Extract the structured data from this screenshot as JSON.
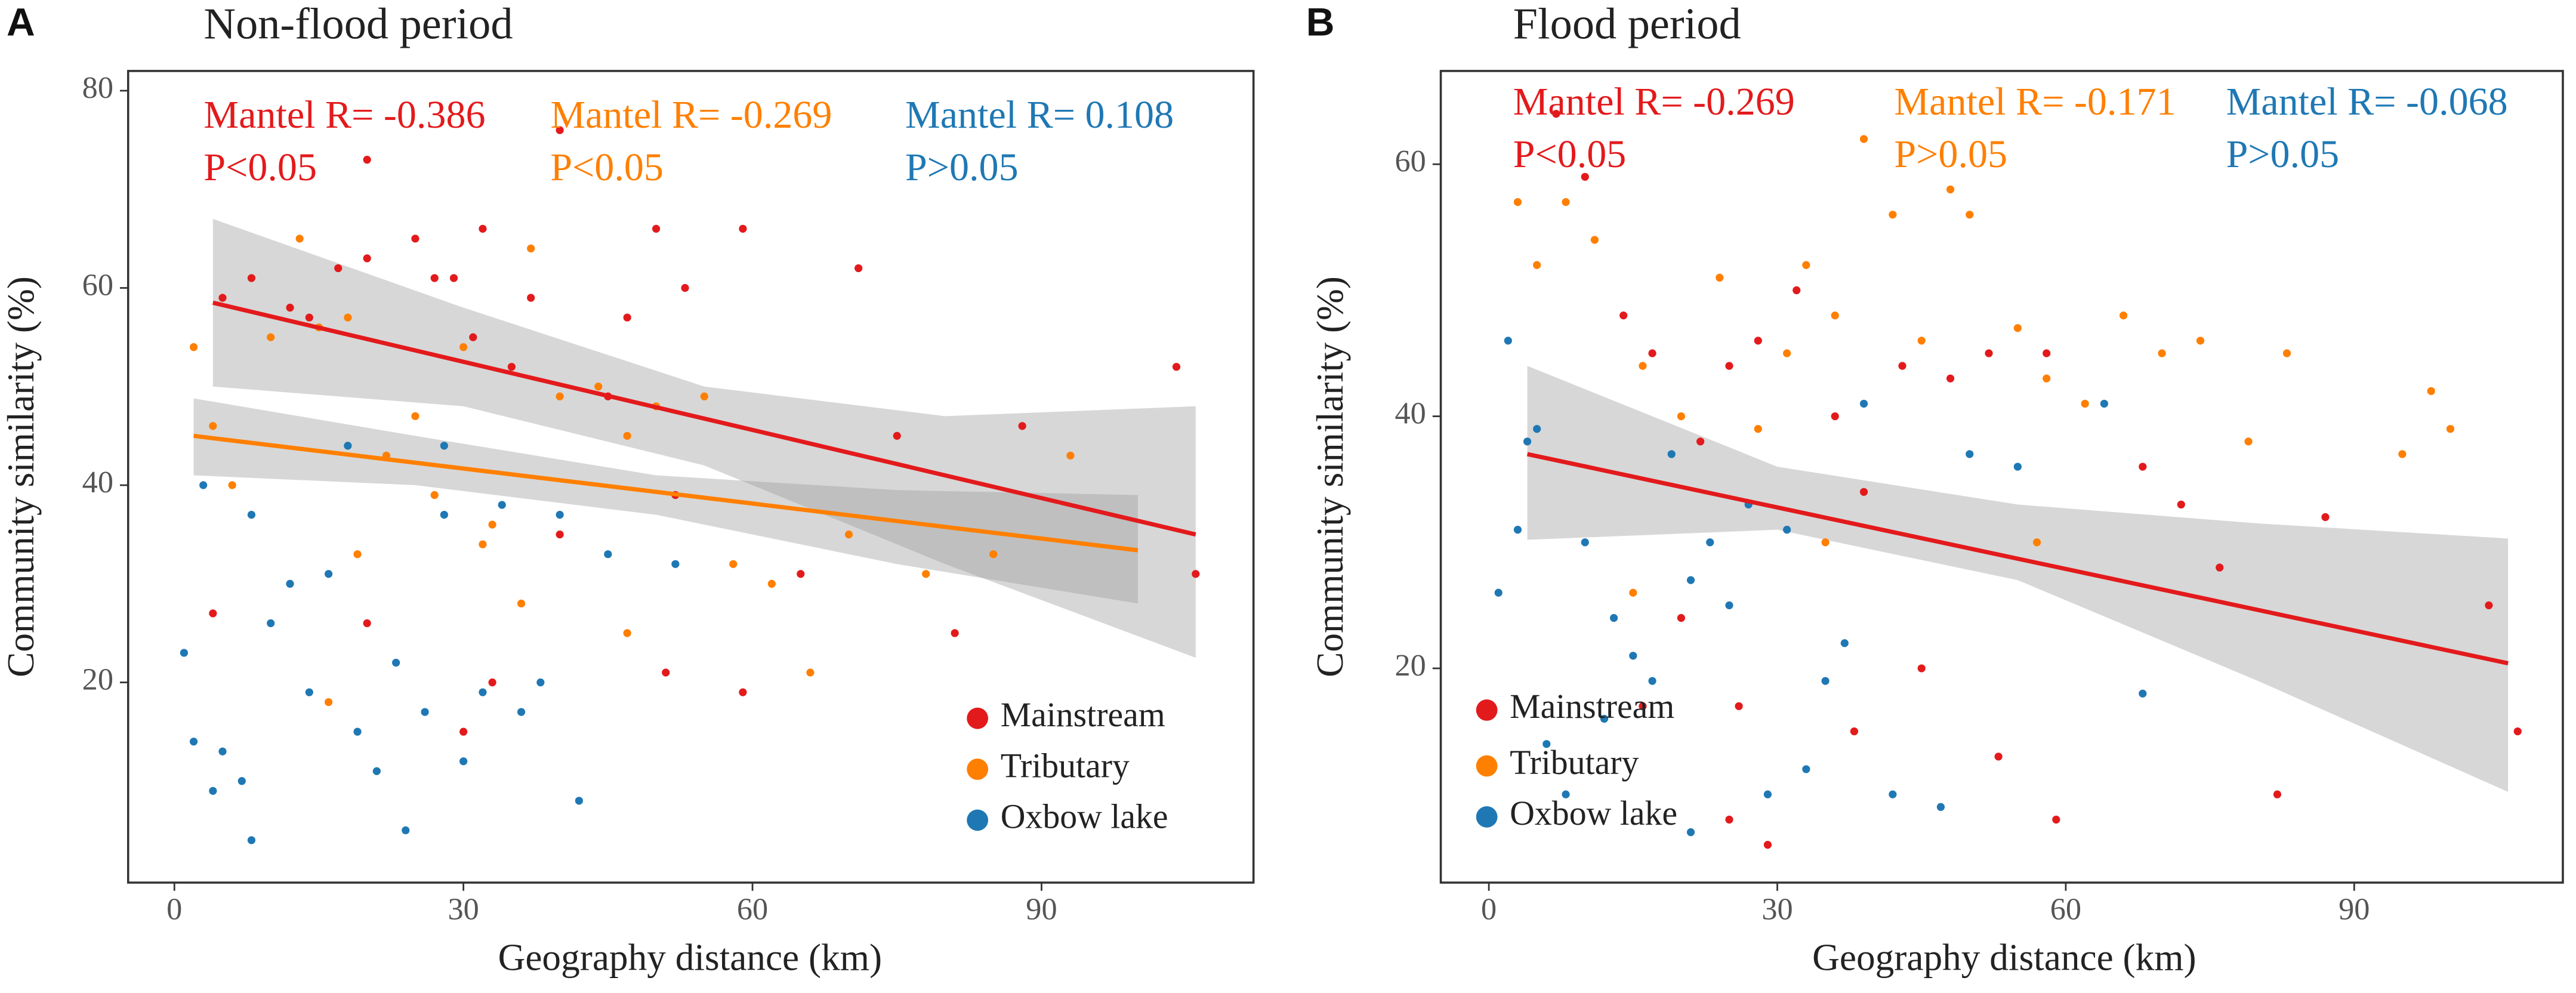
{
  "chart_data": [
    {
      "type": "scatter",
      "panel": "A",
      "title": "Non-flood period",
      "xlabel": "Geography distance (km)",
      "ylabel": "Community similarity (%)",
      "xlim": [
        -4.8,
        112
      ],
      "ylim": [
        -0.3,
        82
      ],
      "xticks": [
        0,
        30,
        60,
        90
      ],
      "yticks": [
        20,
        40,
        60,
        80
      ],
      "annotations": [
        {
          "lines": [
            "Mantel R= -0.386",
            "P<0.05"
          ],
          "color": "#e31a1c"
        },
        {
          "lines": [
            "Mantel R= -0.269",
            "P<0.05"
          ],
          "color": "#ff7f00"
        },
        {
          "lines": [
            "Mantel R= 0.108",
            "P>0.05"
          ],
          "color": "#1f78b4"
        }
      ],
      "series": [
        {
          "name": "Mainstream",
          "color": "#e31a1c",
          "x": [
            5,
            8,
            12,
            14,
            17,
            20,
            20,
            25,
            27,
            29,
            31,
            32,
            35,
            37,
            40,
            45,
            47,
            50,
            53,
            59,
            71,
            88,
            104,
            106,
            75,
            52,
            40,
            33,
            30,
            20,
            4,
            51,
            59,
            81,
            65
          ],
          "y": [
            59,
            61,
            58,
            57,
            62,
            73,
            63,
            65,
            61,
            61,
            55,
            66,
            52,
            59,
            76,
            49,
            57,
            66,
            60,
            66,
            62,
            46,
            52,
            31,
            45,
            39,
            35,
            20,
            15,
            26,
            27,
            21,
            19,
            25,
            31
          ],
          "fit": {
            "x": [
              4,
              106
            ],
            "y": [
              58.5,
              35
            ]
          },
          "band": {
            "x": [
              4,
              30,
              55,
              80,
              106
            ],
            "upper": [
              67,
              58,
              50,
              47,
              48
            ],
            "lower": [
              50,
              48,
              42,
              32,
              22.5
            ]
          }
        },
        {
          "name": "Tributary",
          "color": "#ff7f00",
          "x": [
            2,
            4,
            6,
            10,
            13,
            15,
            18,
            19,
            22,
            25,
            27,
            30,
            33,
            36,
            37,
            40,
            44,
            47,
            50,
            55,
            58,
            62,
            66,
            70,
            78,
            85,
            93,
            16,
            32,
            47
          ],
          "y": [
            54,
            46,
            40,
            55,
            65,
            56,
            57,
            33,
            43,
            47,
            39,
            54,
            36,
            28,
            64,
            49,
            50,
            45,
            48,
            49,
            32,
            30,
            21,
            35,
            31,
            33,
            43,
            18,
            34,
            25
          ],
          "fit": {
            "x": [
              2,
              100
            ],
            "y": [
              45,
              33.4
            ]
          },
          "band": {
            "x": [
              2,
              25,
              50,
              75,
              100
            ],
            "upper": [
              48.8,
              45,
              41,
              39.5,
              39
            ],
            "lower": [
              41,
              40,
              37,
              32,
              28
            ]
          }
        },
        {
          "name": "Oxbow lake",
          "color": "#1f78b4",
          "x": [
            1,
            2,
            3,
            4,
            5,
            7,
            8,
            10,
            12,
            14,
            16,
            19,
            21,
            23,
            24,
            26,
            28,
            30,
            32,
            34,
            36,
            38,
            42,
            45,
            52,
            8,
            18,
            40,
            28
          ],
          "y": [
            23,
            14,
            40,
            9,
            13,
            10,
            4,
            26,
            30,
            19,
            31,
            15,
            11,
            22,
            5,
            17,
            37,
            12,
            19,
            38,
            17,
            20,
            8,
            33,
            32,
            37,
            44,
            37,
            44
          ]
        }
      ]
    },
    {
      "type": "scatter",
      "panel": "B",
      "title": "Flood period",
      "xlabel": "Geography distance (km)",
      "ylabel": "Community similarity (%)",
      "xlim": [
        -5,
        111.7
      ],
      "ylim": [
        3,
        67.4
      ],
      "xticks": [
        0,
        30,
        60,
        90
      ],
      "yticks": [
        20,
        40,
        60
      ],
      "annotations": [
        {
          "lines": [
            "Mantel R= -0.269",
            "P<0.05"
          ],
          "color": "#e31a1c"
        },
        {
          "lines": [
            "Mantel R= -0.171",
            "P>0.05"
          ],
          "color": "#ff7f00"
        },
        {
          "lines": [
            "Mantel R= -0.068",
            "P>0.05"
          ],
          "color": "#1f78b4"
        }
      ],
      "series": [
        {
          "name": "Mainstream",
          "color": "#e31a1c",
          "x": [
            7,
            10,
            14,
            17,
            22,
            25,
            28,
            32,
            36,
            39,
            43,
            48,
            52,
            58,
            68,
            72,
            87,
            104,
            107,
            82,
            59,
            53,
            45,
            38,
            29,
            25,
            26,
            20,
            16,
            76
          ],
          "y": [
            64,
            59,
            48,
            45,
            38,
            44,
            46,
            50,
            40,
            34,
            44,
            43,
            45,
            45,
            36,
            33,
            32,
            25,
            15,
            10,
            8,
            13,
            20,
            15,
            6,
            8,
            17,
            24,
            17,
            28
          ],
          "fit": {
            "x": [
              4,
              106
            ],
            "y": [
              37,
              20.4
            ]
          },
          "band": {
            "x": [
              4,
              30,
              55,
              80,
              106
            ],
            "upper": [
              44,
              36,
              33,
              31.5,
              30.3
            ],
            "lower": [
              30.2,
              31,
              27,
              19,
              10.2
            ]
          }
        },
        {
          "name": "Tributary",
          "color": "#ff7f00",
          "x": [
            3,
            5,
            8,
            11,
            16,
            20,
            24,
            28,
            31,
            33,
            36,
            39,
            42,
            45,
            48,
            50,
            55,
            58,
            62,
            66,
            70,
            74,
            79,
            83,
            95,
            98,
            100,
            15,
            35,
            57
          ],
          "y": [
            57,
            52,
            57,
            54,
            44,
            40,
            51,
            39,
            45,
            52,
            48,
            62,
            56,
            46,
            58,
            56,
            47,
            43,
            41,
            48,
            45,
            46,
            38,
            45,
            37,
            42,
            39,
            26,
            30,
            30
          ]
        },
        {
          "name": "Oxbow lake",
          "color": "#1f78b4",
          "x": [
            1,
            2,
            3,
            4,
            5,
            6,
            8,
            10,
            13,
            15,
            17,
            19,
            21,
            23,
            25,
            27,
            29,
            31,
            33,
            35,
            37,
            39,
            42,
            47,
            50,
            55,
            64,
            68,
            12,
            21
          ],
          "y": [
            26,
            46,
            31,
            38,
            39,
            14,
            10,
            30,
            24,
            21,
            19,
            37,
            27,
            30,
            25,
            33,
            10,
            31,
            12,
            19,
            22,
            41,
            10,
            9,
            37,
            36,
            41,
            18,
            16,
            7
          ]
        }
      ]
    }
  ]
}
